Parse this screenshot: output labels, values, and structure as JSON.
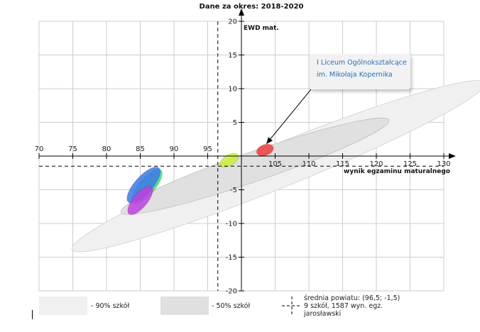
{
  "chart_data": {
    "type": "scatter",
    "title": "Dane za okres: 2018-2020",
    "xlabel": "wynik egzaminu maturalnego",
    "ylabel": "EWD mat.",
    "xlim": [
      70,
      130
    ],
    "ylim": [
      -20,
      20
    ],
    "xticks": [
      "70",
      "75",
      "80",
      "85",
      "90",
      "95",
      "105",
      "110",
      "115",
      "120",
      "125",
      "130"
    ],
    "yticks": [
      "20",
      "15",
      "10",
      "5",
      "-5",
      "-10",
      "-15",
      "-20"
    ],
    "mean": {
      "x": 96.5,
      "y": -1.5
    },
    "region_90": {
      "cx": 105.5,
      "cy": -1.5,
      "rx": 33,
      "ry": 3.2,
      "angle_deg": -22
    },
    "region_50": {
      "cx": 102,
      "cy": -1.5,
      "rx": 21,
      "ry": 2.2,
      "angle_deg": -19
    },
    "schools": [
      {
        "cx": 86,
        "cy": -4.5,
        "rx": 3.2,
        "ry": 1.2,
        "angle_deg": -50,
        "color": "#33e07a"
      },
      {
        "cx": 85.5,
        "cy": -4.3,
        "rx": 3.4,
        "ry": 1.3,
        "angle_deg": -48,
        "color": "#3f78e8"
      },
      {
        "cx": 85,
        "cy": -6.6,
        "rx": 2.6,
        "ry": 1.05,
        "angle_deg": -50,
        "color": "#c03fe0"
      },
      {
        "cx": 98.2,
        "cy": -0.6,
        "rx": 1.5,
        "ry": 0.8,
        "angle_deg": -30,
        "color": "#c8f03a"
      },
      {
        "cx": 103.5,
        "cy": 0.9,
        "rx": 1.3,
        "ry": 0.8,
        "angle_deg": -20,
        "color": "#ee3b3b"
      }
    ],
    "annotation": {
      "line1": "I Liceum Ogólnokształcące",
      "line2": "im. Mikołaja Kopernika",
      "target": {
        "x": 103.5,
        "y": 1.5
      }
    },
    "legend": {
      "p90": "- 90% szkół",
      "p50": "- 50% szkół",
      "mean_label": "średnia powiatu: (96,5; -1,5)",
      "count_label": "9 szkół, 1587 wyn. egz.",
      "region_label": "jarosławski"
    }
  },
  "colors": {
    "region_90": "#f0f0f0",
    "region_50": "#e0e0e0",
    "grid": "#cccccc",
    "axis": "#000000"
  }
}
